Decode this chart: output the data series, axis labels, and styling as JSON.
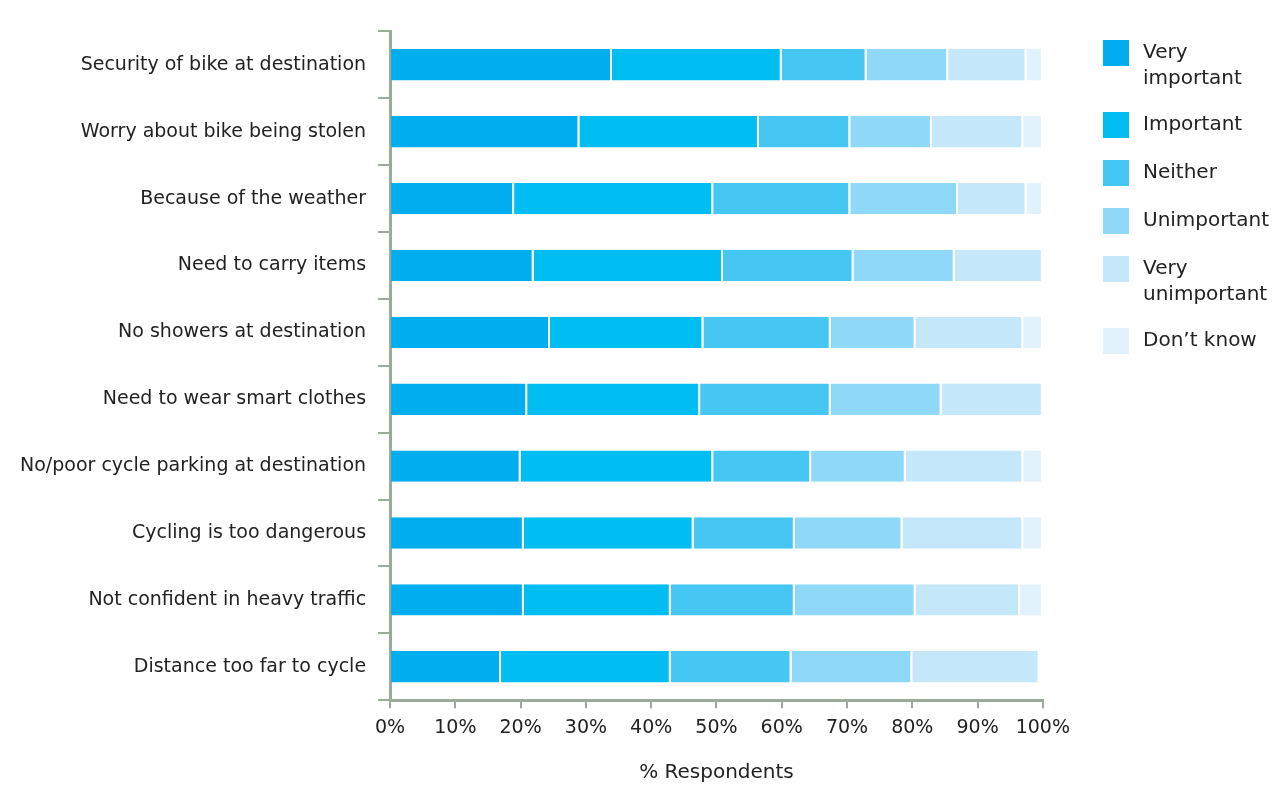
{
  "chart_data": {
    "type": "bar",
    "orientation": "horizontal",
    "stacked": true,
    "xlabel": "% Respondents",
    "categories": [
      "Security of bike at destination",
      "Worry about bike being stolen",
      "Because of the weather",
      "Need to carry items",
      "No showers at destination",
      "Need to wear smart clothes",
      "No/poor cycle parking at destination",
      "Cycling is too dangerous",
      "Not confident in heavy traffic",
      "Distance too far to cycle"
    ],
    "series": [
      {
        "name": "Very important",
        "color": "#00aeef",
        "values": [
          34,
          29,
          19,
          22,
          24.5,
          21,
          20,
          20.5,
          20.5,
          17
        ]
      },
      {
        "name": "Important",
        "color": "#00bdf2",
        "values": [
          26,
          27.5,
          30.5,
          29,
          23.5,
          26.5,
          29.5,
          26,
          22.5,
          26
        ]
      },
      {
        "name": "Neither",
        "color": "#45c6f3",
        "values": [
          13,
          14,
          21,
          20,
          19.5,
          20,
          15,
          15.5,
          19,
          18.5
        ]
      },
      {
        "name": "Unimportant",
        "color": "#8fd8f7",
        "values": [
          12.5,
          12.5,
          16.5,
          15.5,
          13,
          17,
          14.5,
          16.5,
          18.5,
          18.5
        ]
      },
      {
        "name": "Very unimportant",
        "color": "#c4e7f9",
        "values": [
          12,
          14,
          10.5,
          13.5,
          16.5,
          15.5,
          18,
          18.5,
          16,
          19.5
        ]
      },
      {
        "name": "Don’t know",
        "color": "#e1f2fc",
        "values": [
          2.5,
          3,
          2.5,
          null,
          3,
          null,
          3,
          3,
          3.5,
          null
        ]
      }
    ],
    "xlim": [
      0,
      100
    ],
    "xticks": [
      {
        "value": 0,
        "label": "0%"
      },
      {
        "value": 10,
        "label": "10%"
      },
      {
        "value": 20,
        "label": "20%"
      },
      {
        "value": 30,
        "label": "30%"
      },
      {
        "value": 40,
        "label": "40%"
      },
      {
        "value": 50,
        "label": "50%"
      },
      {
        "value": 60,
        "label": "60%"
      },
      {
        "value": 70,
        "label": "70%"
      },
      {
        "value": 80,
        "label": "80%"
      },
      {
        "value": 90,
        "label": "90%"
      },
      {
        "value": 100,
        "label": "100%"
      }
    ],
    "grid": false,
    "legend": "right"
  }
}
